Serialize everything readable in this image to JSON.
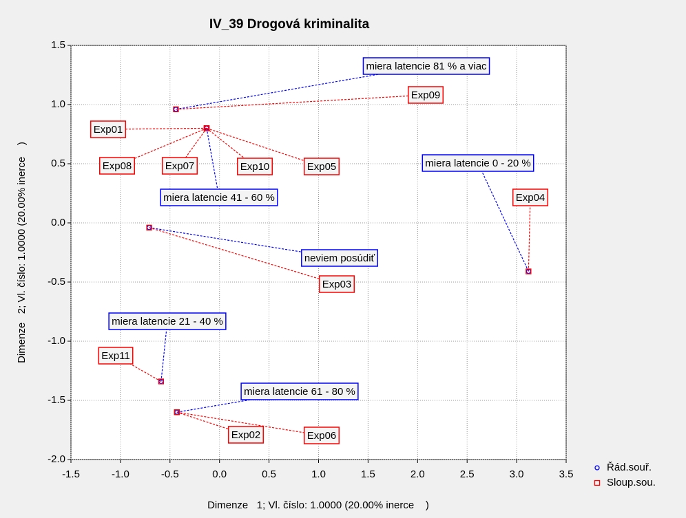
{
  "chart_data": {
    "type": "scatter",
    "title": "IV_39 Drogová kriminalita",
    "x_label": "Dimenze   1; Vl. číslo: 1.0000 (20.00% inerce    )",
    "y_label": "Dimenze   2; Vl. číslo: 1.0000 (20.00% inerce    )",
    "xlim": [
      -1.5,
      3.5
    ],
    "ylim": [
      -2.0,
      1.5
    ],
    "xticks": [
      -1.5,
      {
        "value": -1,
        "label": "-1.0"
      },
      -0.5,
      {
        "value": 0,
        "label": "0.0"
      },
      0.5,
      {
        "value": 1,
        "label": "1.0"
      },
      1.5,
      {
        "value": 2,
        "label": "2.0"
      },
      2.5,
      {
        "value": 3,
        "label": "3.0"
      },
      3.5
    ],
    "yticks": [
      1.5,
      {
        "value": 1,
        "label": "1.0"
      },
      0.5,
      {
        "value": 0,
        "label": "0.0"
      },
      -0.5,
      {
        "value": -1,
        "label": "-1.0"
      },
      -1.5,
      {
        "value": -2,
        "label": "-2.0"
      }
    ],
    "grid": true,
    "legend": "lower right",
    "series": [
      {
        "name": "Řád.souř.",
        "color": "#0000ff",
        "marker": "circle",
        "labels": [
          "miera latencie 81 % a viac",
          "miera latencie 41 - 60 %",
          "neviem posúdiť",
          "miera latencie 0 - 20 %",
          "miera latencie 21 - 40 %",
          "miera latencie 61 - 80 %"
        ],
        "x": [
          -0.44,
          -0.13,
          -0.71,
          3.12,
          -0.59,
          -0.43
        ],
        "values": [
          0.96,
          0.8,
          -0.04,
          -0.41,
          -1.34,
          -1.6
        ]
      },
      {
        "name": "Sloup.sou.",
        "color": "#ff0000",
        "marker": "square",
        "labels": [
          "Exp01",
          "Exp02",
          "Exp03",
          "Exp04",
          "Exp05",
          "Exp06",
          "Exp07",
          "Exp08",
          "Exp09",
          "Exp10",
          "Exp11"
        ],
        "x": [
          -0.13,
          -0.43,
          -0.71,
          3.12,
          -0.13,
          -0.43,
          -0.13,
          -0.13,
          -0.44,
          -0.13,
          -0.59
        ],
        "values": [
          0.8,
          -1.6,
          -0.04,
          -0.41,
          0.8,
          -1.6,
          0.8,
          0.8,
          0.96,
          0.8,
          -1.34
        ]
      }
    ]
  }
}
